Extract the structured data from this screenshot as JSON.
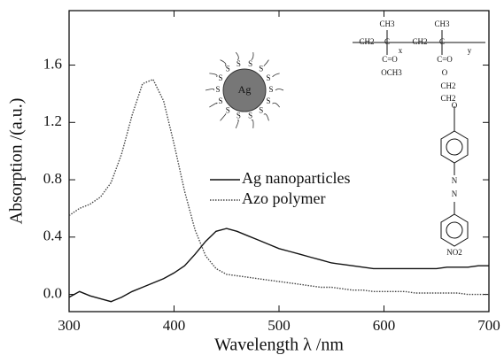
{
  "chart_data": {
    "type": "line",
    "xlabel": "Wavelength λ /nm",
    "ylabel": "Absorption /(a.u.)",
    "x": [
      300,
      310,
      320,
      330,
      340,
      350,
      360,
      370,
      380,
      390,
      400,
      410,
      420,
      430,
      440,
      450,
      460,
      470,
      480,
      490,
      500,
      510,
      520,
      530,
      540,
      550,
      560,
      570,
      580,
      590,
      600,
      610,
      620,
      630,
      640,
      650,
      660,
      670,
      680,
      690,
      700
    ],
    "series": [
      {
        "name": "Ag nanoparticles",
        "color": "#111111",
        "style": "solid",
        "values": [
          -0.02,
          0.02,
          -0.01,
          -0.03,
          -0.05,
          -0.02,
          0.02,
          0.05,
          0.08,
          0.11,
          0.15,
          0.2,
          0.28,
          0.37,
          0.44,
          0.46,
          0.44,
          0.41,
          0.38,
          0.35,
          0.32,
          0.3,
          0.28,
          0.26,
          0.24,
          0.22,
          0.21,
          0.2,
          0.19,
          0.18,
          0.18,
          0.18,
          0.18,
          0.18,
          0.18,
          0.18,
          0.19,
          0.19,
          0.19,
          0.2,
          0.2
        ]
      },
      {
        "name": "Azo polymer",
        "color": "#444444",
        "style": "dotted",
        "values": [
          0.55,
          0.6,
          0.63,
          0.68,
          0.78,
          0.98,
          1.25,
          1.47,
          1.5,
          1.35,
          1.05,
          0.72,
          0.45,
          0.27,
          0.18,
          0.14,
          0.13,
          0.12,
          0.11,
          0.1,
          0.09,
          0.08,
          0.07,
          0.06,
          0.05,
          0.05,
          0.04,
          0.03,
          0.03,
          0.02,
          0.02,
          0.02,
          0.02,
          0.01,
          0.01,
          0.01,
          0.01,
          0.01,
          0.0,
          0.0,
          0.0
        ]
      }
    ],
    "xlim": [
      300,
      700
    ],
    "xticks": [
      300,
      400,
      500,
      600,
      700
    ],
    "ylim": [
      -0.12,
      1.98
    ],
    "yticks": [
      {
        "value": 0,
        "label": "0.0"
      },
      0.4,
      0.8,
      1.2,
      1.6
    ],
    "grid": false,
    "legend": "center",
    "annotations": [
      "Ag",
      "S",
      "CH3",
      "CH2",
      "C",
      "C=O",
      "OCH3",
      "O",
      "N",
      "NO2",
      "x",
      "y"
    ]
  }
}
